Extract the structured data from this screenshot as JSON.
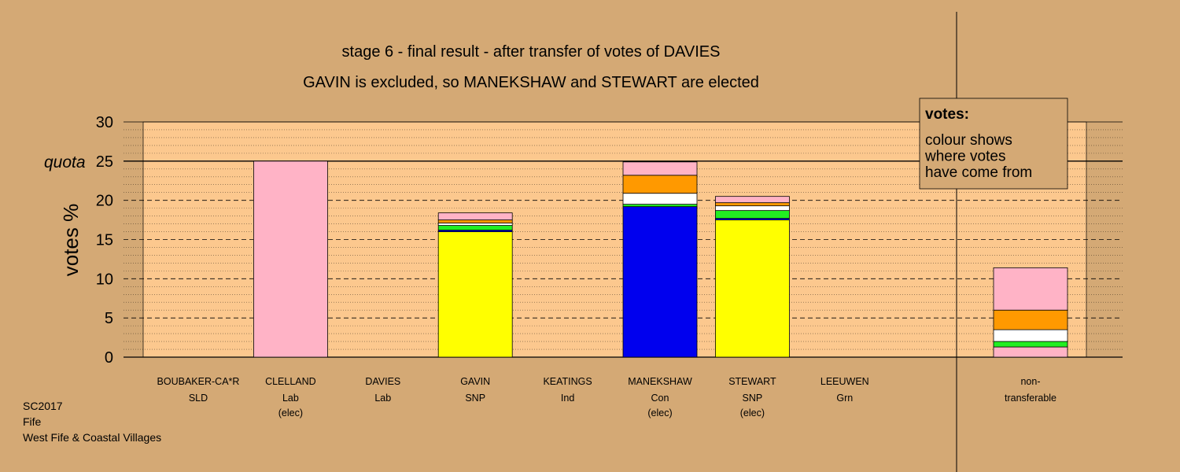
{
  "chart_data": {
    "type": "bar",
    "stacked": true,
    "title": "stage 6 - final result - after transfer of votes of DAVIES",
    "subtitle": "GAVIN is excluded, so MANEKSHAW and STEWART are elected",
    "ylabel": "votes %",
    "ylim": [
      0,
      30
    ],
    "yticks": [
      0,
      5,
      10,
      15,
      20,
      25,
      30
    ],
    "quota": 25,
    "quota_label": "quota",
    "grid": true,
    "legend_position": "top-right",
    "legend": {
      "title": "votes:",
      "lines": [
        "colour shows",
        "where votes",
        "have come from"
      ]
    },
    "colors": {
      "SNP": "#ffff00",
      "Con": "#0000ee",
      "Lab": "#ffb3c6",
      "Green": "#22ee22",
      "Ind": "#ffffff",
      "LD": "#ff9900",
      "border": "#000000"
    },
    "candidates": [
      {
        "name": "BOUBAKER-CA*R",
        "party": "SLD",
        "status": "",
        "segments": []
      },
      {
        "name": "CLELLAND",
        "party": "Lab",
        "status": "(elec)",
        "segments": [
          {
            "from": "Lab",
            "value": 25.0
          }
        ]
      },
      {
        "name": "DAVIES",
        "party": "Lab",
        "status": "",
        "segments": []
      },
      {
        "name": "GAVIN",
        "party": "SNP",
        "status": "",
        "segments": [
          {
            "from": "SNP",
            "value": 16.0
          },
          {
            "from": "Con",
            "value": 0.2
          },
          {
            "from": "Green",
            "value": 0.6
          },
          {
            "from": "Ind",
            "value": 0.3
          },
          {
            "from": "LD",
            "value": 0.4
          },
          {
            "from": "Lab",
            "value": 0.9
          }
        ]
      },
      {
        "name": "KEATINGS",
        "party": "Ind",
        "status": "",
        "segments": []
      },
      {
        "name": "MANEKSHAW",
        "party": "Con",
        "status": "(elec)",
        "segments": [
          {
            "from": "Con",
            "value": 19.2
          },
          {
            "from": "Green",
            "value": 0.3
          },
          {
            "from": "Ind",
            "value": 1.4
          },
          {
            "from": "LD",
            "value": 2.3
          },
          {
            "from": "Lab",
            "value": 1.7
          }
        ]
      },
      {
        "name": "STEWART",
        "party": "SNP",
        "status": "(elec)",
        "segments": [
          {
            "from": "SNP",
            "value": 17.5
          },
          {
            "from": "Con",
            "value": 0.2
          },
          {
            "from": "Green",
            "value": 1.0
          },
          {
            "from": "Ind",
            "value": 0.6
          },
          {
            "from": "LD",
            "value": 0.4
          },
          {
            "from": "Lab",
            "value": 0.8
          }
        ]
      },
      {
        "name": "LEEUWEN",
        "party": "Grn",
        "status": "",
        "segments": []
      }
    ],
    "nontransferable": {
      "label_line1": "non-",
      "label_line2": "transferable",
      "segments": [
        {
          "from": "Lab",
          "value": 1.3
        },
        {
          "from": "Green",
          "value": 0.7
        },
        {
          "from": "Ind",
          "value": 1.5
        },
        {
          "from": "LD",
          "value": 2.5
        },
        {
          "from": "Lab",
          "value": 5.4
        }
      ]
    }
  },
  "footer": {
    "line1": "SC2017",
    "line2": "Fife",
    "line3": "West Fife & Coastal Villages"
  }
}
